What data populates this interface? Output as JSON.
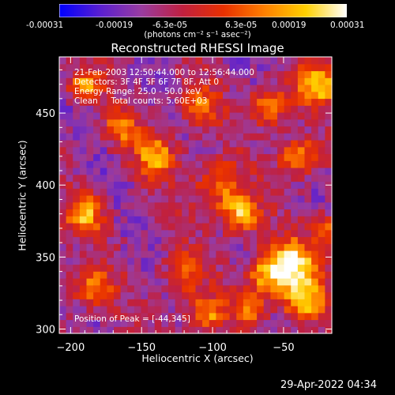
{
  "colorbar": {
    "ticks": [
      "-0.00031",
      "-0.00019",
      "-6.3e-05",
      "6.3e-05",
      "0.00019",
      "0.00031"
    ],
    "unit_text": "(photons cm⁻² s⁻¹ asec⁻²)",
    "range": [
      -0.00031,
      0.00031
    ],
    "colors": [
      "#0000ff",
      "#5a1fd0",
      "#9a3ca0",
      "#c02040",
      "#e83000",
      "#ff8000",
      "#ffd000",
      "#ffffff"
    ]
  },
  "chart_data": {
    "type": "heatmap",
    "title": "Reconstructed RHESSI Image",
    "xlabel": "Heliocentric X (arcsec)",
    "ylabel": "Heliocentric Y (arcsec)",
    "xlim": [
      -208,
      -16
    ],
    "ylim": [
      297,
      489
    ],
    "x_ticks": [
      -200,
      -150,
      -100,
      -50
    ],
    "x_tick_labels": [
      "−200",
      "−150",
      "−100",
      "−50"
    ],
    "y_ticks": [
      300,
      350,
      400,
      450
    ],
    "y_tick_labels": [
      "300",
      "350",
      "400",
      "450"
    ],
    "annotations": [
      "21-Feb-2003 12:50:44.000 to 12:56:44.000",
      "Detectors: 3F 4F 5F 6F 7F 8F, Att 0",
      "Energy Range: 25.0 - 50.0 keV",
      "Clean     Total counts: 5.60E+03"
    ],
    "peak_label": "Position of Peak = [-44,345]",
    "peak": [
      -44,
      345
    ],
    "sources": [
      {
        "x": -44,
        "y": 345,
        "strength": 1.0,
        "sigma": 12
      },
      {
        "x": -36,
        "y": 320,
        "strength": 0.9,
        "sigma": 10
      },
      {
        "x": -62,
        "y": 338,
        "strength": 0.7,
        "sigma": 10
      },
      {
        "x": -80,
        "y": 380,
        "strength": 0.85,
        "sigma": 9
      },
      {
        "x": -95,
        "y": 400,
        "strength": 0.6,
        "sigma": 12
      },
      {
        "x": -140,
        "y": 420,
        "strength": 0.75,
        "sigma": 10
      },
      {
        "x": -165,
        "y": 440,
        "strength": 0.65,
        "sigma": 8
      },
      {
        "x": -190,
        "y": 470,
        "strength": 0.7,
        "sigma": 8
      },
      {
        "x": -190,
        "y": 380,
        "strength": 0.8,
        "sigma": 9
      },
      {
        "x": -185,
        "y": 330,
        "strength": 0.6,
        "sigma": 10
      },
      {
        "x": -120,
        "y": 340,
        "strength": 0.55,
        "sigma": 10
      },
      {
        "x": -105,
        "y": 310,
        "strength": 0.7,
        "sigma": 9
      },
      {
        "x": -75,
        "y": 315,
        "strength": 0.6,
        "sigma": 8
      },
      {
        "x": -25,
        "y": 470,
        "strength": 0.9,
        "sigma": 10
      },
      {
        "x": -60,
        "y": 455,
        "strength": 0.75,
        "sigma": 9
      },
      {
        "x": -40,
        "y": 420,
        "strength": 0.8,
        "sigma": 9
      },
      {
        "x": -110,
        "y": 455,
        "strength": 0.6,
        "sigma": 10
      },
      {
        "x": -20,
        "y": 370,
        "strength": 0.6,
        "sigma": 7
      }
    ]
  },
  "datestamp": "29-Apr-2022 04:34"
}
